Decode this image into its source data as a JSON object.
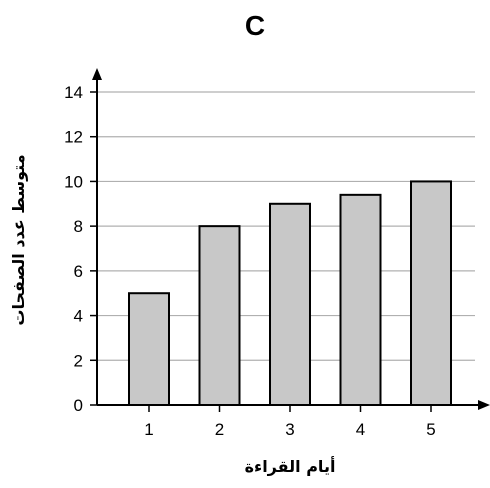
{
  "chart_data": {
    "type": "bar",
    "title": "C",
    "xlabel": "أيام القراءة",
    "ylabel": "متوسط عدد الصفحات",
    "categories": [
      "1",
      "2",
      "3",
      "4",
      "5"
    ],
    "values": [
      5,
      8,
      9,
      9.4,
      10
    ],
    "ylim": [
      0,
      14
    ],
    "yticks": [
      0,
      2,
      4,
      6,
      8,
      10,
      12,
      14
    ],
    "grid": true,
    "colors": {
      "bar_fill": "#c8c8c8",
      "bar_stroke": "#000000",
      "grid": "#b0b0b0"
    }
  }
}
